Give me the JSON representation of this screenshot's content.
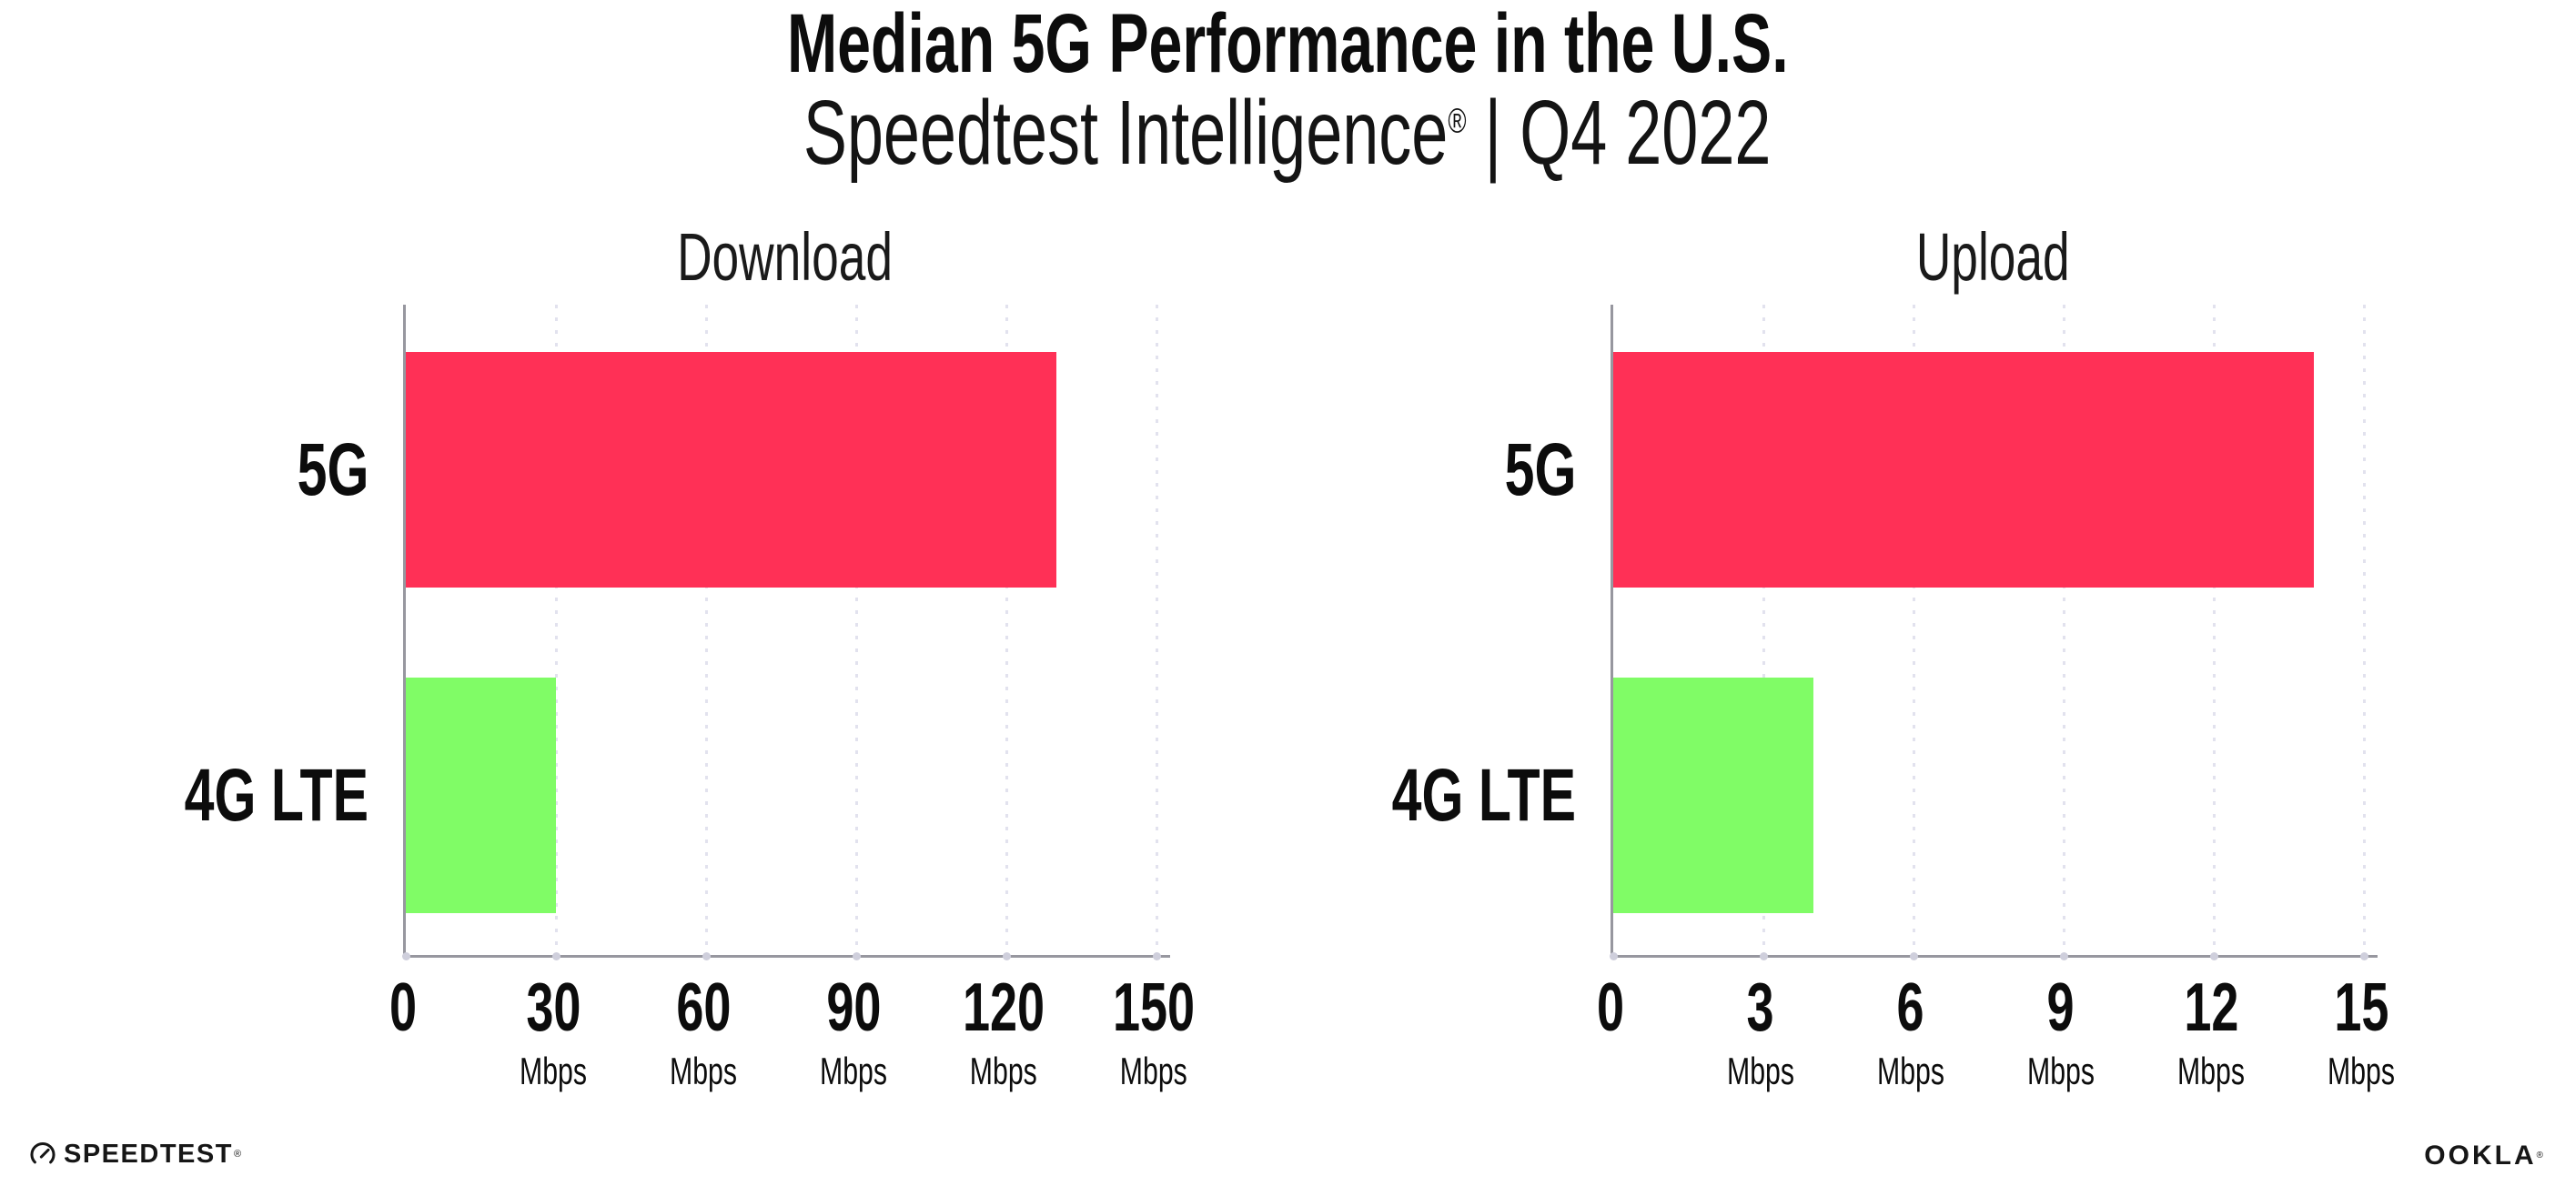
{
  "header": {
    "title": "Median 5G Performance in the U.S.",
    "subtitle_brand": "Speedtest Intelligence",
    "subtitle_reg": "®",
    "subtitle_rest": " | Q4 2022"
  },
  "colors": {
    "bar_5g": "#FF3056",
    "bar_4g_lte": "#80FC66",
    "axis_line": "#97979f",
    "gridline_dots": "#e2e2ee",
    "tick_dots": "#cfcfdc",
    "text": "#0c0c0c",
    "background": "#ffffff"
  },
  "chart_data": [
    {
      "type": "bar",
      "orientation": "horizontal",
      "title": "Download",
      "categories": [
        "5G",
        "4G LTE"
      ],
      "values": [
        130,
        30
      ],
      "unit": "Mbps",
      "xlim": [
        0,
        150
      ],
      "xticks": [
        0,
        30,
        60,
        90,
        120,
        150
      ],
      "bar_colors": [
        "#FF3056",
        "#80FC66"
      ],
      "grid": "vertical-dotted",
      "legend": "none"
    },
    {
      "type": "bar",
      "orientation": "horizontal",
      "title": "Upload",
      "categories": [
        "5G",
        "4G LTE"
      ],
      "values": [
        14,
        4
      ],
      "unit": "Mbps",
      "xlim": [
        0,
        15
      ],
      "xticks": [
        0,
        3,
        6,
        9,
        12,
        15
      ],
      "bar_colors": [
        "#FF3056",
        "#80FC66"
      ],
      "grid": "vertical-dotted",
      "legend": "none"
    }
  ],
  "footer": {
    "speedtest_label": "SPEEDTEST",
    "speedtest_reg": "®",
    "ookla_label": "OOKLA",
    "ookla_reg": "®"
  }
}
